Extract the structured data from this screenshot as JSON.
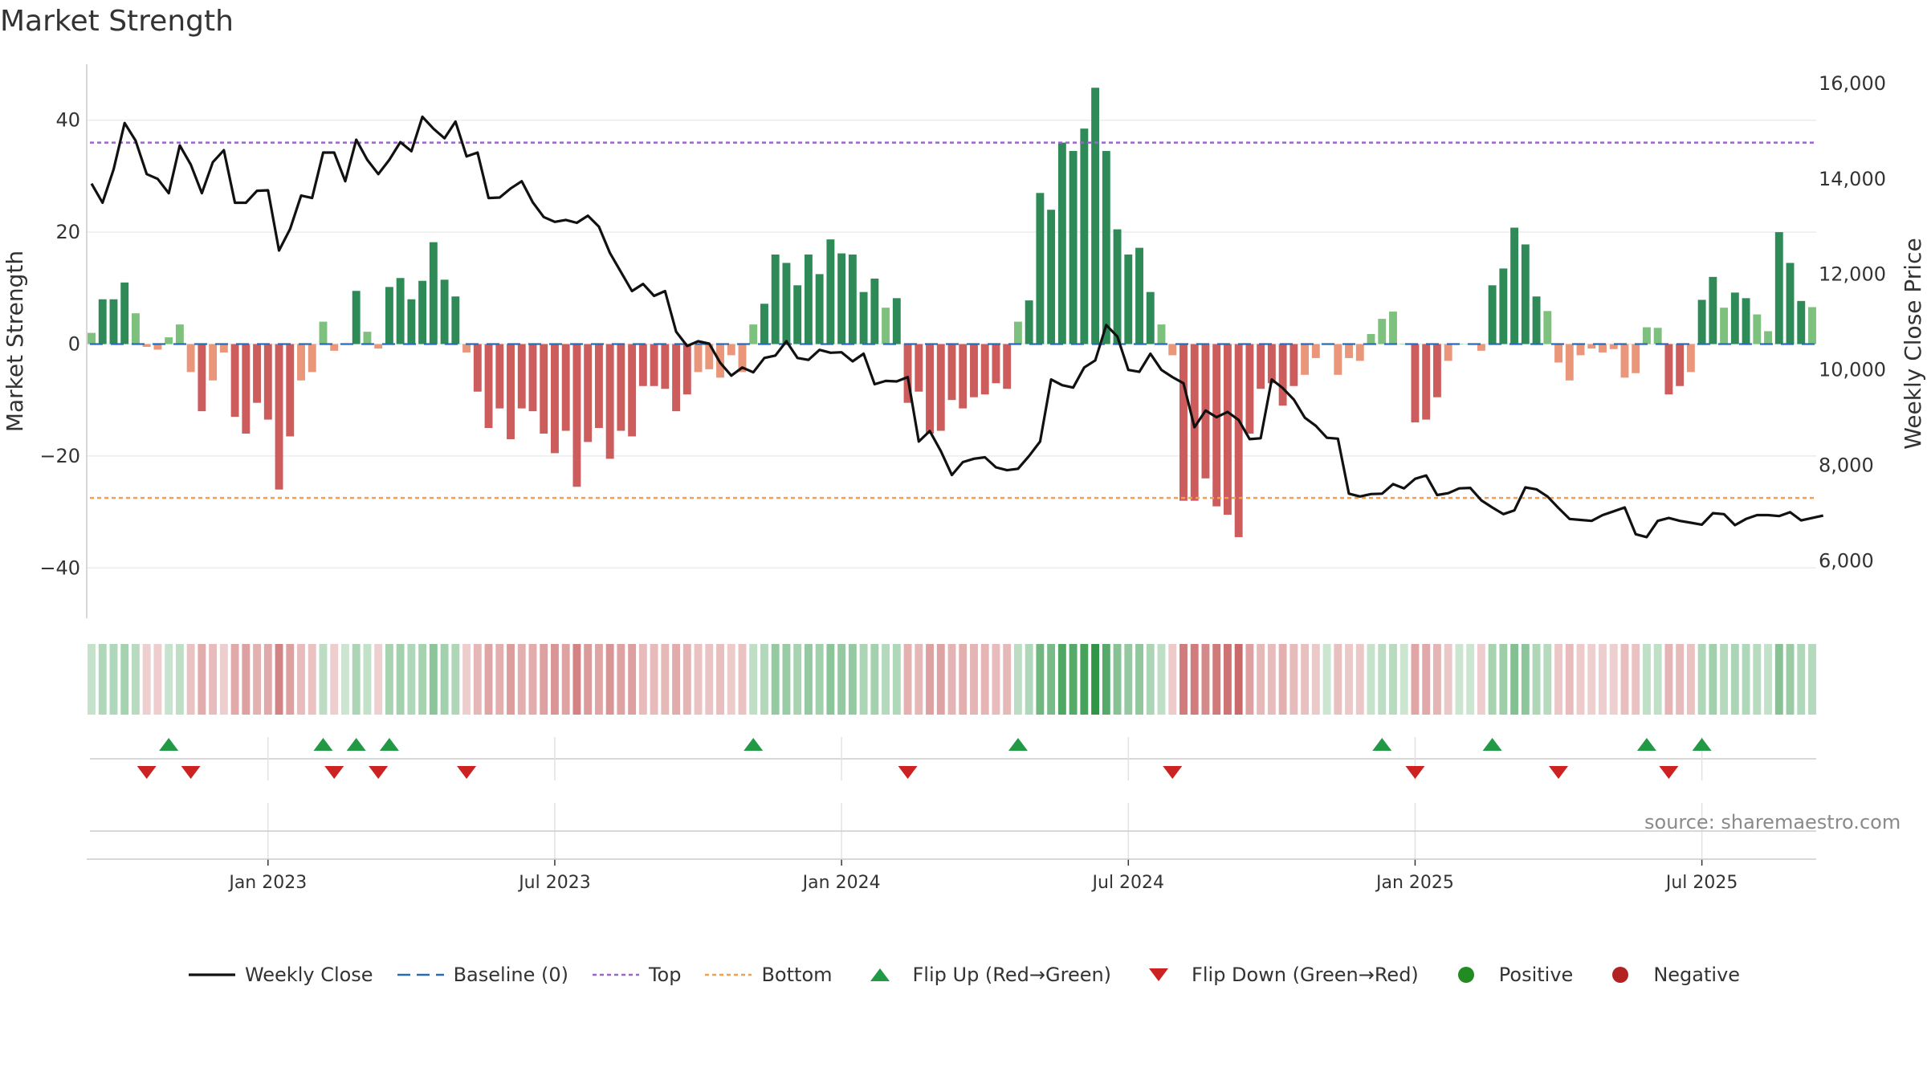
{
  "title": "Market Strength",
  "source": "source: sharemaestro.com",
  "colors": {
    "strong_green": "#2e8b57",
    "light_green": "#7ec17e",
    "strong_red": "#cd5c5c",
    "light_red": "#e9967a",
    "top_line": "#9966cc",
    "bottom_line": "#f0a050",
    "baseline": "#2a6bb5",
    "flip_up": "#229944",
    "flip_down": "#cc2222",
    "positive": "#228B22",
    "negative": "#B22222"
  },
  "legend": [
    {
      "key": "close",
      "label": "Weekly Close"
    },
    {
      "key": "baseline",
      "label": "Baseline (0)"
    },
    {
      "key": "top",
      "label": "Top"
    },
    {
      "key": "bottom",
      "label": "Bottom"
    },
    {
      "key": "flip_up",
      "label": "Flip Up (Red→Green)"
    },
    {
      "key": "flip_down",
      "label": "Flip Down (Green→Red)"
    },
    {
      "key": "positive",
      "label": "Positive"
    },
    {
      "key": "negative",
      "label": "Negative"
    }
  ],
  "chart_data": {
    "type": "bar",
    "title": "Market Strength",
    "ylabel": "Market Strength",
    "y2label": "Weekly Close Price",
    "ylim": [
      -49,
      50
    ],
    "y2lim": [
      4800,
      16400
    ],
    "yticks": [
      40,
      20,
      0,
      -20,
      -40
    ],
    "yticklabels": [
      "40",
      "20",
      "0",
      "−20",
      "−40"
    ],
    "y2ticks": [
      16000,
      14000,
      12000,
      10000,
      8000,
      6000
    ],
    "y2ticklabels": [
      "16,000",
      "14,000",
      "12,000",
      "10,000",
      "8,000",
      "6,000"
    ],
    "top_level": 36,
    "bottom_level": -27.5,
    "x_start_week": 0,
    "x_ticks": [
      {
        "label": "Jan 2023",
        "week": 16
      },
      {
        "label": "Jul 2023",
        "week": 42
      },
      {
        "label": "Jan 2024",
        "week": 68
      },
      {
        "label": "Jul 2024",
        "week": 94
      },
      {
        "label": "Jan 2025",
        "week": 120
      },
      {
        "label": "Jul 2025",
        "week": 146
      }
    ],
    "strength": [
      2,
      8,
      8,
      11,
      5.5,
      -0.5,
      -1,
      1.2,
      3.5,
      -5,
      -12,
      -6.5,
      -1.5,
      -13,
      -16,
      -10.5,
      -13.5,
      -26,
      -16.5,
      -6.5,
      -5,
      4,
      -1.2,
      0,
      9.5,
      2.2,
      -0.8,
      10.2,
      11.8,
      8,
      11.3,
      18.2,
      11.5,
      8.5,
      -1.5,
      -8.5,
      -15,
      -11.5,
      -17,
      -11.5,
      -12,
      -16,
      -19.5,
      -15.5,
      -25.5,
      -17.5,
      -15,
      -20.5,
      -15.5,
      -16.5,
      -7.5,
      -7.5,
      -8,
      -12,
      -9,
      -5,
      -4.5,
      -6,
      -2,
      -5,
      3.5,
      7.2,
      16,
      14.5,
      10.5,
      16,
      12.5,
      18.7,
      16.2,
      16,
      9.3,
      11.7,
      6.5,
      8.2,
      -10.5,
      -8.5,
      -16,
      -15.5,
      -10,
      -11.5,
      -9.5,
      -9,
      -7,
      -8,
      4,
      7.8,
      27,
      24,
      36,
      34.5,
      38.5,
      45.8,
      34.5,
      20.5,
      16,
      17.2,
      9.3,
      3.5,
      -2,
      -28,
      -28,
      -24,
      -29,
      -30.5,
      -34.5,
      -16,
      -8,
      -7,
      -11,
      -7.5,
      -5.5,
      -2.5,
      0,
      -5.5,
      -2.5,
      -3,
      1.8,
      4.5,
      5.8,
      0,
      -14,
      -13.5,
      -9.5,
      -3,
      0,
      0,
      -1.2,
      10.5,
      13.5,
      20.8,
      17.8,
      8.5,
      5.9,
      -3.3,
      -6.5,
      -2,
      -0.8,
      -1.5,
      -0.9,
      -6,
      -5.2,
      3,
      2.9,
      -9,
      -7.5,
      -5,
      7.9,
      12,
      6.5,
      9.2,
      8.2,
      5.3,
      2.3,
      20,
      14.5,
      7.7,
      6.6
    ],
    "close": [
      13900,
      13500,
      14200,
      15170,
      14800,
      14100,
      14000,
      13700,
      14700,
      14300,
      13700,
      14350,
      14600,
      13500,
      13500,
      13750,
      13760,
      12500,
      12950,
      13650,
      13600,
      14550,
      14550,
      13950,
      14820,
      14400,
      14100,
      14400,
      14770,
      14580,
      15300,
      15050,
      14850,
      15200,
      14470,
      14550,
      13600,
      13610,
      13800,
      13950,
      13510,
      13200,
      13100,
      13140,
      13080,
      13230,
      13000,
      12450,
      12050,
      11650,
      11800,
      11550,
      11650,
      10800,
      10500,
      10600,
      10550,
      10150,
      9880,
      10050,
      9950,
      10250,
      10300,
      10600,
      10250,
      10210,
      10420,
      10360,
      10370,
      10180,
      10340,
      9700,
      9770,
      9760,
      9850,
      8500,
      8720,
      8300,
      7800,
      8070,
      8140,
      8170,
      7960,
      7900,
      7930,
      8200,
      8500,
      9800,
      9680,
      9630,
      10050,
      10200,
      10940,
      10700,
      10000,
      9960,
      10340,
      10000,
      9850,
      9720,
      8800,
      9150,
      9010,
      9120,
      8950,
      8550,
      8570,
      9800,
      9620,
      9380,
      9000,
      8830,
      8580,
      8560,
      7410,
      7350,
      7400,
      7410,
      7610,
      7520,
      7720,
      7790,
      7380,
      7420,
      7520,
      7530,
      7270,
      7120,
      6980,
      7060,
      7540,
      7500,
      7350,
      7110,
      6880,
      6860,
      6840,
      6960,
      7040,
      7120,
      6560,
      6500,
      6840,
      6900,
      6840,
      6800,
      6760,
      7000,
      6980,
      6750,
      6880,
      6960,
      6960,
      6940,
      7020,
      6850,
      6900,
      6950
    ],
    "strength_scale": [
      0.95,
      0.95,
      0.9,
      0.85,
      0.7,
      0.7,
      0.7,
      0.9,
      0.9,
      0.5,
      0.4,
      0.4,
      0.3,
      0.3,
      0.3,
      0.3,
      0.4,
      0.5,
      0.5,
      0.4,
      0.4,
      0.9,
      0.3,
      0.6,
      0.8,
      0.8,
      0.6,
      0.8,
      0.8,
      0.8,
      0.7,
      0.7,
      0.7,
      0.7,
      0.2,
      0.2,
      0.3,
      0.3,
      0.3,
      0.3,
      0.4,
      0.4,
      0.4,
      0.4,
      0.4,
      0.4,
      0.4,
      0.4,
      0.4,
      0.4,
      0.4,
      0.5,
      0.5,
      0.5,
      0.6,
      0.6,
      0.6,
      0.6,
      0.6,
      0.6,
      0.6,
      0.6,
      0.6,
      0.6,
      0.6,
      0.6,
      0.6,
      0.6,
      0.6,
      0.6,
      0.6,
      0.6,
      0.6,
      0.6,
      0.6,
      0.45,
      0.45,
      0.45,
      0.45,
      0.45,
      0.45,
      0.45,
      0.45,
      0.45,
      0.45,
      0.65,
      0.65,
      0.65,
      0.65,
      0.65,
      0.65,
      0.65,
      0.65,
      0.65,
      0.65,
      0.65,
      0.65,
      0.65,
      0.65,
      0.65,
      0.65,
      0.65,
      0.65,
      0.65,
      0.65,
      0.65,
      0.65,
      0.65,
      0.65,
      0.65,
      0.65,
      0.65,
      0.65,
      0.65,
      0.65,
      0.65,
      0.65,
      0.65,
      0.65,
      0.65,
      0.65,
      0.65,
      0.65,
      0.65,
      0.65,
      0.65,
      0.65,
      0.65,
      0.65,
      0.65,
      0.65,
      0.65,
      0.65,
      0.65,
      0.65,
      0.65,
      0.65,
      0.65,
      0.65,
      0.65,
      0.65,
      0.65,
      0.65,
      0.65,
      0.65,
      0.65,
      0.65,
      0.65,
      0.65,
      0.65,
      0.65,
      0.65,
      0.65,
      0.65,
      0.65,
      0.65
    ],
    "flips_up_weeks": [
      7,
      21,
      24,
      27,
      60,
      84,
      117,
      127,
      141,
      146
    ],
    "flips_down_weeks": [
      5,
      9,
      22,
      26,
      34,
      74,
      98,
      120,
      133,
      143
    ]
  }
}
